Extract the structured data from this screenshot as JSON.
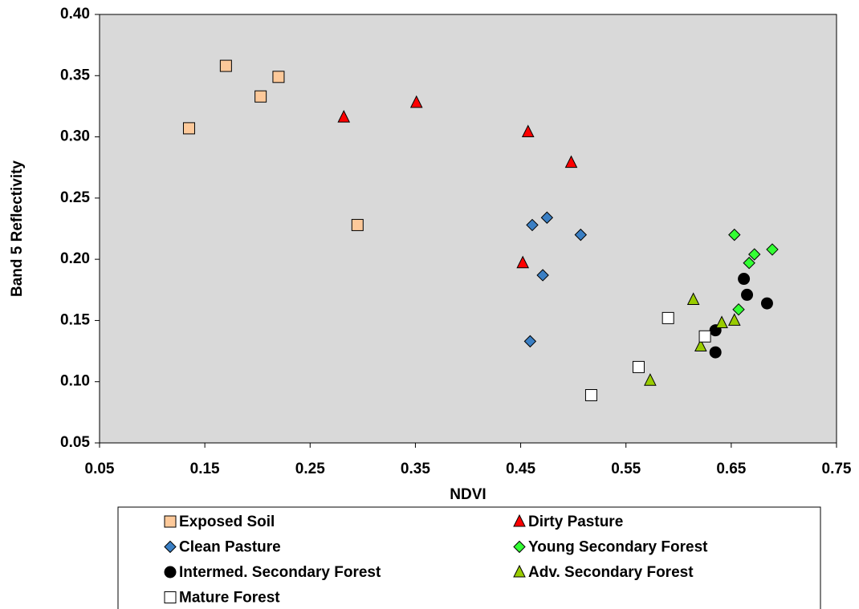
{
  "chart_data": {
    "type": "scatter",
    "x_label": "NDVI",
    "y_label": "Band 5 Reflectivity",
    "xlim": [
      0.05,
      0.75
    ],
    "ylim": [
      0.05,
      0.4
    ],
    "xticks": [
      0.05,
      0.15,
      0.25,
      0.35,
      0.45,
      0.55,
      0.65,
      0.75
    ],
    "yticks": [
      0.05,
      {
        "value": 0.1,
        "label": "0.10"
      },
      0.15,
      {
        "value": 0.2,
        "label": "0.20"
      },
      0.25,
      {
        "value": 0.3,
        "label": "0.30"
      },
      0.35,
      {
        "value": 0.4,
        "label": "0.40"
      }
    ],
    "grid": false,
    "background": "#d9d9d9",
    "legend": "bottom",
    "series": [
      {
        "name": "Exposed Soil",
        "color": "#fdc99a",
        "marker": "square",
        "x": [
          0.135,
          0.17,
          0.203,
          0.22,
          0.295
        ],
        "values": [
          0.307,
          0.358,
          0.333,
          0.349,
          0.228
        ]
      },
      {
        "name": "Dirty Pasture",
        "color": "#ff0000",
        "marker": "triangle",
        "x": [
          0.282,
          0.351,
          0.457,
          0.498,
          0.452
        ],
        "values": [
          0.316,
          0.328,
          0.304,
          0.279,
          0.197
        ]
      },
      {
        "name": "Clean Pasture",
        "color": "#3a7fc4",
        "marker": "diamond",
        "x": [
          0.461,
          0.475,
          0.507,
          0.471,
          0.459
        ],
        "values": [
          0.228,
          0.234,
          0.22,
          0.187,
          0.133
        ]
      },
      {
        "name": "Young Secondary Forest",
        "color": "#33ff33",
        "marker": "diamond",
        "x": [
          0.653,
          0.672,
          0.689,
          0.667,
          0.657
        ],
        "values": [
          0.22,
          0.204,
          0.208,
          0.197,
          0.159
        ]
      },
      {
        "name": "Intermed. Secondary Forest",
        "color": "#000000",
        "marker": "circle",
        "x": [
          0.662,
          0.665,
          0.684,
          0.635,
          0.635
        ],
        "values": [
          0.184,
          0.171,
          0.164,
          0.142,
          0.124
        ]
      },
      {
        "name": "Adv. Secondary Forest",
        "color": "#99cc00",
        "marker": "triangle",
        "x": [
          0.614,
          0.641,
          0.653,
          0.621,
          0.573
        ],
        "values": [
          0.167,
          0.148,
          0.15,
          0.129,
          0.101
        ]
      },
      {
        "name": "Mature Forest",
        "color": "#ffffff",
        "marker": "square",
        "x": [
          0.59,
          0.625,
          0.562,
          0.517
        ],
        "values": [
          0.152,
          0.137,
          0.112,
          0.089
        ]
      }
    ]
  }
}
